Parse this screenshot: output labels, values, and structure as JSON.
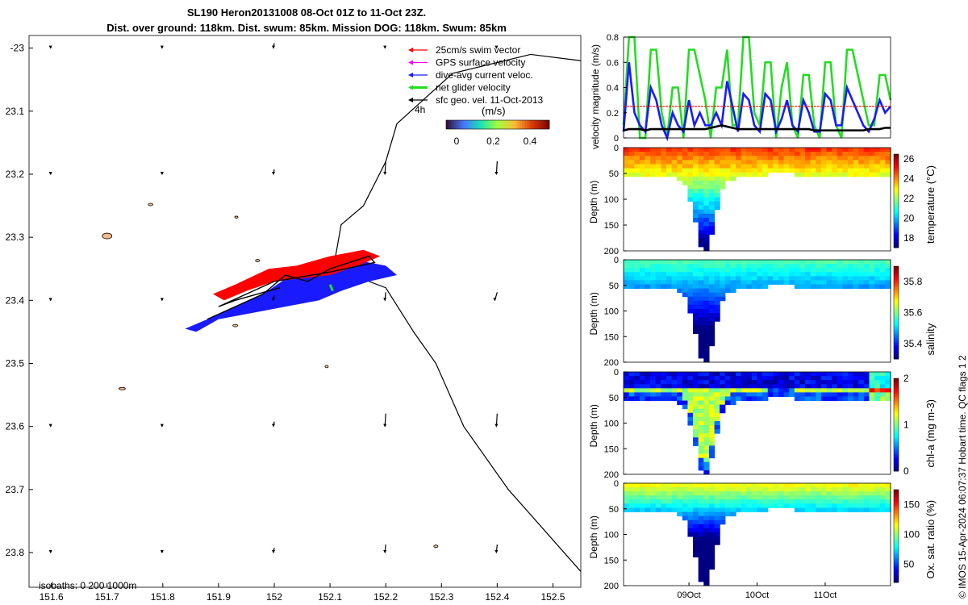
{
  "title_line1": "SL190 Heron20131008 08-Oct 01Z to 11-Oct 23Z.",
  "title_line2": "Dist. over ground: 118km. Dist. swum: 85km. Mission DOG: 118km. Swum: 85km",
  "isobaths_label": "isobaths: 0   200  1000m",
  "credit_label": "© IMOS 15-Apr-2024 06:07:37 Hobart time. QC flags 1  2",
  "colors": {
    "swim": "#ff0000",
    "gps": "#ff00ff",
    "dive_avg": "#1a1aff",
    "net": "#22dd22",
    "geo": "#000000"
  },
  "map": {
    "x_ticks": [
      "151.6",
      "151.7",
      "151.8",
      "151.9",
      "152",
      "152.1",
      "152.2",
      "152.3",
      "152.4",
      "152.5"
    ],
    "y_ticks": [
      "-23",
      "23.1",
      "23.2",
      "23.3",
      "23.4",
      "23.5",
      "23.6",
      "23.7",
      "23.8"
    ],
    "legend": [
      {
        "label": "25cm/s swim vector",
        "color_key": "swim"
      },
      {
        "label": "GPS surface velocity",
        "color_key": "gps"
      },
      {
        "label": "dive-avg current veloc.",
        "color_key": "dive_avg"
      },
      {
        "label": "net glider velocity",
        "color_key": "net"
      },
      {
        "label": "sfc geo. vel. 11-Oct-2013",
        "color_key": "geo"
      }
    ],
    "legend_extra": "4h",
    "colorbar_unit": "(m/s)",
    "colorbar_ticks": [
      "0",
      "0.2",
      "0.4"
    ]
  },
  "chart_data": [
    {
      "type": "line",
      "ylabel": "velocity magnitude (m/s)",
      "ylim": [
        0,
        0.8
      ],
      "y_ticks": [
        "0",
        "0.2",
        "0.4",
        "0.6",
        "0.8"
      ],
      "series": [
        {
          "color_key": "net",
          "values": [
            0.1,
            0.8,
            0.8,
            0.0,
            0.0,
            0.7,
            0.7,
            0.2,
            0.0,
            0.4,
            0.4,
            0.0,
            0.7,
            0.7,
            0.5,
            0.3,
            0.0,
            0.4,
            0.4,
            0.7,
            0.1,
            0.1,
            0.8,
            0.8,
            0.2,
            0.1,
            0.6,
            0.6,
            0.0,
            0.4,
            0.6,
            0.1,
            0.0,
            0.5,
            0.5,
            0.1,
            0.0,
            0.6,
            0.6,
            0.1,
            0.0,
            0.7,
            0.7,
            0.5,
            0.3,
            0.1,
            0.1,
            0.5,
            0.5,
            0.3
          ]
        },
        {
          "color_key": "dive_avg",
          "values": [
            0.05,
            0.6,
            0.2,
            0.1,
            0.05,
            0.4,
            0.3,
            0.1,
            0.0,
            0.2,
            0.1,
            0.05,
            0.3,
            0.1,
            0.2,
            0.1,
            0.1,
            0.2,
            0.1,
            0.45,
            0.25,
            0.05,
            0.35,
            0.3,
            0.1,
            0.05,
            0.35,
            0.3,
            0.05,
            0.15,
            0.3,
            0.1,
            0.05,
            0.3,
            0.2,
            0.05,
            0.05,
            0.35,
            0.3,
            0.1,
            0.1,
            0.4,
            0.3,
            0.2,
            0.1,
            0.05,
            0.15,
            0.3,
            0.2,
            0.25
          ]
        },
        {
          "color_key": "swim",
          "values": [
            0.25,
            0.25,
            0.25,
            0.25,
            0.25,
            0.25,
            0.25,
            0.25,
            0.25,
            0.25,
            0.25,
            0.25,
            0.25,
            0.25,
            0.25,
            0.25,
            0.25,
            0.25,
            0.25,
            0.25,
            0.25,
            0.25,
            0.25,
            0.25,
            0.25,
            0.25,
            0.25,
            0.25,
            0.25,
            0.25,
            0.25,
            0.25,
            0.25,
            0.25,
            0.25,
            0.25,
            0.25,
            0.25,
            0.25,
            0.25,
            0.25,
            0.25,
            0.25,
            0.25,
            0.25,
            0.25,
            0.25,
            0.25,
            0.25,
            0.25
          ]
        },
        {
          "color_key": "geo",
          "values": [
            0.06,
            0.07,
            0.07,
            0.07,
            0.06,
            0.07,
            0.07,
            0.07,
            0.07,
            0.07,
            0.07,
            0.07,
            0.07,
            0.07,
            0.07,
            0.07,
            0.08,
            0.09,
            0.1,
            0.09,
            0.08,
            0.07,
            0.07,
            0.07,
            0.07,
            0.07,
            0.07,
            0.07,
            0.07,
            0.07,
            0.07,
            0.07,
            0.07,
            0.07,
            0.07,
            0.06,
            0.06,
            0.06,
            0.06,
            0.06,
            0.06,
            0.06,
            0.06,
            0.06,
            0.06,
            0.07,
            0.07,
            0.07,
            0.08,
            0.08
          ]
        }
      ]
    },
    {
      "type": "heatmap",
      "variable": "temperature",
      "ylabel": "Depth (m)",
      "cbar_label": "temperature (°C)",
      "y_ticks": [
        "0",
        "50",
        "100",
        "150",
        "200"
      ],
      "cbar_ticks": [
        "18",
        "20",
        "22",
        "24",
        "26"
      ],
      "cbar_range": [
        17,
        26.5
      ]
    },
    {
      "type": "heatmap",
      "variable": "salinity",
      "ylabel": "Depth (m)",
      "cbar_label": "salinity",
      "y_ticks": [
        "0",
        "50",
        "100",
        "150",
        "200"
      ],
      "cbar_ticks": [
        "35.4",
        "35.6",
        "35.8"
      ],
      "cbar_range": [
        35.3,
        35.9
      ]
    },
    {
      "type": "heatmap",
      "variable": "chl-a",
      "ylabel": "Depth (m)",
      "cbar_label": "chl-a (mg m-3)",
      "y_ticks": [
        "0",
        "50",
        "100",
        "150",
        "200"
      ],
      "cbar_ticks": [
        "0",
        "1",
        "2"
      ],
      "cbar_range": [
        0,
        2
      ]
    },
    {
      "type": "heatmap",
      "variable": "oxygen",
      "ylabel": "Depth (m)",
      "cbar_label": "Ox. sat. ratio (%)",
      "y_ticks": [
        "0",
        "50",
        "100",
        "150",
        "200"
      ],
      "cbar_ticks": [
        "50",
        "100",
        "150"
      ],
      "cbar_range": [
        20,
        175
      ],
      "x_ticks": [
        "09Oct",
        "10Oct",
        "11Oct"
      ]
    }
  ]
}
